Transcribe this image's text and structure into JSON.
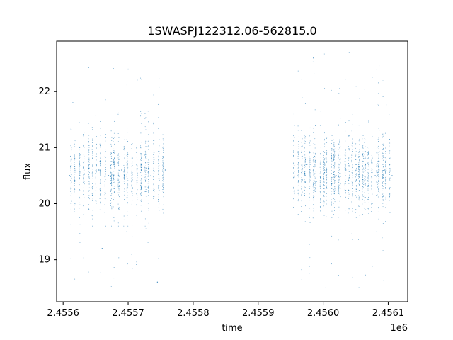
{
  "chart_data": {
    "type": "scatter",
    "title": "1SWASPJ122312.06-562815.0",
    "xlabel": "time",
    "ylabel": "flux",
    "x_offset_label": "1e6",
    "xlim": [
      2455590,
      2456130
    ],
    "ylim": [
      18.25,
      22.9
    ],
    "x_ticks": [
      2455600,
      2455700,
      2455800,
      2455900,
      2456000,
      2456100
    ],
    "x_tick_labels": [
      "2.4556",
      "2.4557",
      "2.4558",
      "2.4559",
      "2.4560",
      "2.4561"
    ],
    "y_ticks": [
      19,
      20,
      21,
      22
    ],
    "y_tick_labels": [
      "19",
      "20",
      "21",
      "22"
    ],
    "grid": false,
    "point_color": "#1f77b4",
    "series": [
      {
        "values": [
          {
            "x": 2455610,
            "y": 20.5
          },
          {
            "x": 2455625,
            "y": 20.7
          },
          {
            "x": 2455640,
            "y": 20.4
          },
          {
            "x": 2455655,
            "y": 20.6
          },
          {
            "x": 2455670,
            "y": 20.5
          },
          {
            "x": 2455690,
            "y": 20.6
          },
          {
            "x": 2455705,
            "y": 20.4
          },
          {
            "x": 2455720,
            "y": 20.7
          },
          {
            "x": 2455735,
            "y": 20.5
          },
          {
            "x": 2455757,
            "y": 20.6
          },
          {
            "x": 2455615,
            "y": 21.8
          },
          {
            "x": 2455660,
            "y": 19.2
          },
          {
            "x": 2455700,
            "y": 22.4
          },
          {
            "x": 2455745,
            "y": 18.6
          },
          {
            "x": 2455960,
            "y": 20.5
          },
          {
            "x": 2455975,
            "y": 20.7
          },
          {
            "x": 2455990,
            "y": 20.4
          },
          {
            "x": 2456005,
            "y": 20.6
          },
          {
            "x": 2456020,
            "y": 20.5
          },
          {
            "x": 2456035,
            "y": 20.6
          },
          {
            "x": 2456050,
            "y": 20.4
          },
          {
            "x": 2456065,
            "y": 20.7
          },
          {
            "x": 2456080,
            "y": 20.5
          },
          {
            "x": 2456095,
            "y": 20.6
          },
          {
            "x": 2456106,
            "y": 20.5
          },
          {
            "x": 2456040,
            "y": 22.7
          },
          {
            "x": 2456055,
            "y": 18.5
          },
          {
            "x": 2455985,
            "y": 22.6
          }
        ]
      }
    ],
    "observing_seasons": [
      {
        "x_min": 2455610,
        "x_max": 2455757,
        "y_center": 20.55,
        "y_typical_min": 19.9,
        "y_typical_max": 21.3,
        "y_extreme_min": 18.5,
        "y_extreme_max": 22.5
      },
      {
        "x_min": 2455955,
        "x_max": 2456107,
        "y_center": 20.55,
        "y_typical_min": 19.8,
        "y_typical_max": 21.4,
        "y_extreme_min": 18.5,
        "y_extreme_max": 22.7
      }
    ]
  }
}
